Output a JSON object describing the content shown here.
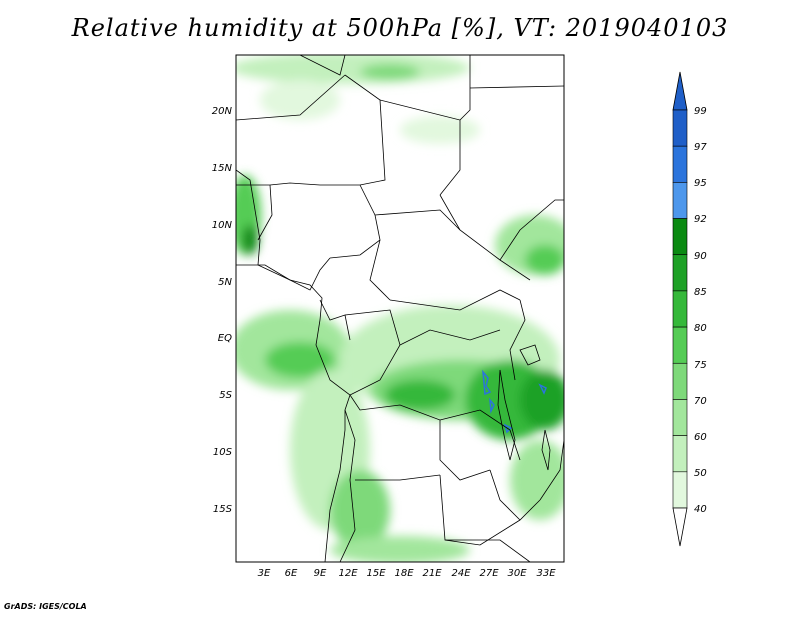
{
  "title": "Relative humidity at 500hPa [%], VT: 2019040103",
  "credit": "GrADS: IGES/COLA",
  "map": {
    "lat_labels": [
      "20N",
      "15N",
      "10N",
      "5N",
      "EQ",
      "5S",
      "10S",
      "15S"
    ],
    "lon_labels": [
      "3E",
      "6E",
      "9E",
      "12E",
      "15E",
      "18E",
      "21E",
      "24E",
      "27E",
      "30E",
      "33E"
    ]
  },
  "colorbar": {
    "levels": [
      "99",
      "97",
      "95",
      "92",
      "90",
      "85",
      "80",
      "75",
      "70",
      "60",
      "50",
      "40"
    ],
    "colors": [
      "#1f5fc8",
      "#2b74dc",
      "#4d97ec",
      "#0a8a12",
      "#1ea126",
      "#35b83a",
      "#55cc55",
      "#7ed97a",
      "#a2e69c",
      "#c3f0bd",
      "#e2f8de"
    ]
  }
}
